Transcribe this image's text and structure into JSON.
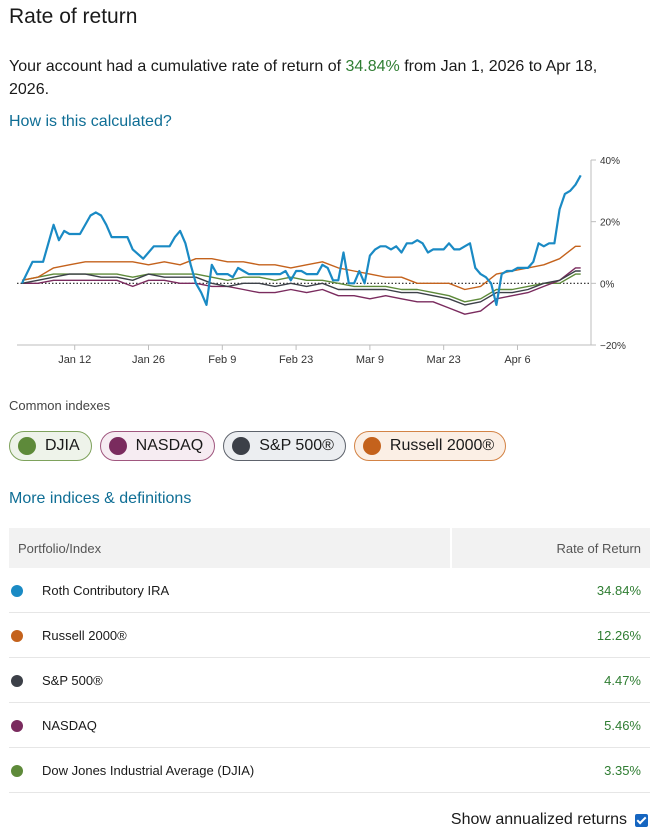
{
  "title": "Rate of return",
  "summary": {
    "prefix": "Your account had a cumulative rate of return of ",
    "rate": "34.84%",
    "suffix": " from Jan 1, 2026 to Apr 18, 2026."
  },
  "how_link": "How is this calculated?",
  "chart_data": {
    "type": "line",
    "x_tick_labels": [
      "Jan 12",
      "Jan 26",
      "Feb 9",
      "Feb 23",
      "Mar 9",
      "Mar 23",
      "Apr 6"
    ],
    "x_tick_positions": [
      11,
      25,
      39,
      53,
      67,
      81,
      95
    ],
    "y_tick_labels": [
      "40%",
      "20%",
      "0%",
      "−20%"
    ],
    "ylim": [
      -20,
      40
    ],
    "xlim": [
      1,
      108
    ],
    "zero_line": "dotted",
    "series": [
      {
        "name": "Roth Contributory IRA",
        "color": "#1a8ac4",
        "x": [
          1,
          3,
          5,
          7,
          8,
          9,
          10,
          11,
          12,
          14,
          15,
          16,
          17,
          18,
          19,
          20,
          21,
          22,
          24,
          26,
          28,
          29,
          30,
          31,
          32,
          33,
          34,
          35,
          36,
          37,
          38,
          39,
          40,
          41,
          42,
          43,
          44,
          45,
          46,
          47,
          48,
          49,
          50,
          51,
          52,
          53,
          54,
          55,
          56,
          57,
          58,
          59,
          60,
          61,
          62,
          63,
          64,
          65,
          66,
          67,
          68,
          69,
          70,
          71,
          72,
          73,
          74,
          75,
          76,
          77,
          78,
          79,
          80,
          81,
          82,
          83,
          84,
          85,
          86,
          87,
          88,
          89,
          90,
          91,
          92,
          93,
          94,
          95,
          96,
          97,
          98,
          99,
          100,
          101,
          102,
          103,
          104,
          105,
          106,
          107
        ],
        "y": [
          0,
          7,
          7,
          19,
          14,
          17,
          16,
          16,
          16,
          22,
          23,
          22,
          19,
          15,
          15,
          15,
          15,
          11,
          8,
          12,
          12,
          12,
          15,
          17,
          13,
          6,
          0,
          -3,
          -7,
          6,
          3,
          3,
          3,
          2,
          5,
          4,
          3,
          3,
          3,
          3,
          3,
          3,
          3,
          4,
          1,
          4,
          4,
          3,
          3,
          3,
          6,
          5,
          1,
          1,
          10,
          0,
          0,
          4,
          0,
          9,
          11,
          12,
          12,
          11,
          12,
          10,
          13,
          13,
          14,
          13,
          10,
          11,
          11,
          11,
          13,
          11,
          11,
          12,
          13,
          5,
          3,
          2,
          0,
          -7,
          3,
          4,
          4,
          5,
          5,
          5,
          7,
          13,
          12,
          13,
          13,
          24,
          29,
          30,
          32,
          35
        ]
      },
      {
        "name": "Russell 2000®",
        "color": "#c4621c",
        "x": [
          1,
          4,
          7,
          10,
          13,
          16,
          19,
          22,
          25,
          28,
          31,
          34,
          37,
          40,
          43,
          46,
          49,
          52,
          55,
          58,
          61,
          64,
          67,
          70,
          73,
          76,
          79,
          82,
          85,
          88,
          91,
          94,
          97,
          100,
          103,
          106,
          107
        ],
        "y": [
          1,
          2,
          5,
          6,
          7,
          7,
          7,
          7,
          6,
          7,
          6,
          8,
          8,
          7,
          7,
          6,
          6,
          5,
          6,
          7,
          5,
          4,
          3,
          2,
          2,
          0,
          0,
          0,
          -2,
          -1,
          3,
          4,
          5,
          6,
          8,
          12,
          12
        ]
      },
      {
        "name": "S&P 500®",
        "color": "#3c4048",
        "x": [
          1,
          4,
          7,
          10,
          13,
          16,
          19,
          22,
          25,
          28,
          31,
          34,
          37,
          40,
          43,
          46,
          49,
          52,
          55,
          58,
          61,
          64,
          67,
          70,
          73,
          76,
          79,
          82,
          85,
          88,
          91,
          94,
          97,
          100,
          103,
          106,
          107
        ],
        "y": [
          0,
          1,
          2,
          3,
          3,
          2,
          2,
          1,
          3,
          2,
          2,
          2,
          0,
          -1,
          0,
          0,
          -1,
          0,
          -1,
          0,
          -2,
          -2,
          -2,
          -2,
          -3,
          -3,
          -4,
          -5,
          -7,
          -6,
          -3,
          -3,
          -2,
          0,
          1,
          4,
          4
        ]
      },
      {
        "name": "NASDAQ",
        "color": "#7a2b5e",
        "x": [
          1,
          4,
          7,
          10,
          13,
          16,
          19,
          22,
          25,
          28,
          31,
          34,
          37,
          40,
          43,
          46,
          49,
          52,
          55,
          58,
          61,
          64,
          67,
          70,
          73,
          76,
          79,
          82,
          85,
          88,
          91,
          94,
          97,
          100,
          103,
          106,
          107
        ],
        "y": [
          0,
          0,
          1,
          1,
          1,
          1,
          1,
          -1,
          1,
          1,
          0,
          0,
          -1,
          -1,
          -2,
          -3,
          -3,
          -2,
          -3,
          -2,
          -4,
          -4,
          -5,
          -4,
          -5,
          -6,
          -6,
          -8,
          -10,
          -9,
          -5,
          -4,
          -3,
          -1,
          1,
          5,
          5
        ]
      },
      {
        "name": "Dow Jones Industrial Average (DJIA)",
        "color": "#5e8a3a",
        "x": [
          1,
          4,
          7,
          10,
          13,
          16,
          19,
          22,
          25,
          28,
          31,
          34,
          37,
          40,
          43,
          46,
          49,
          52,
          55,
          58,
          61,
          64,
          67,
          70,
          73,
          76,
          79,
          82,
          85,
          88,
          91,
          94,
          97,
          100,
          103,
          106,
          107
        ],
        "y": [
          1,
          2,
          3,
          3,
          3,
          3,
          3,
          2,
          3,
          3,
          3,
          3,
          2,
          1,
          2,
          2,
          1,
          2,
          1,
          1,
          0,
          -1,
          -1,
          -1,
          -2,
          -2,
          -3,
          -4,
          -6,
          -5,
          -2,
          -2,
          -1,
          0,
          0,
          3,
          3
        ]
      }
    ]
  },
  "common_label": "Common indexes",
  "pills": [
    {
      "label": "DJIA",
      "dot": "#5e8a3a",
      "bg": "#eef3ea",
      "border": "#7ea25c"
    },
    {
      "label": "NASDAQ",
      "dot": "#7a2b5e",
      "bg": "#f6ecf2",
      "border": "#a0577f"
    },
    {
      "label": "S&P 500®",
      "dot": "#3c4048",
      "bg": "#eceef1",
      "border": "#5e636c"
    },
    {
      "label": "Russell 2000®",
      "dot": "#c4621c",
      "bg": "#fbefe5",
      "border": "#d38345"
    }
  ],
  "more_link": "More indices & definitions",
  "table": {
    "col_portfolio": "Portfolio/Index",
    "col_rate": "Rate of Return",
    "rows": [
      {
        "name": "Roth Contributory IRA",
        "rate": "34.84%",
        "color": "#1a8ac4"
      },
      {
        "name": "Russell 2000®",
        "rate": "12.26%",
        "color": "#c4621c"
      },
      {
        "name": "S&P 500®",
        "rate": "4.47%",
        "color": "#3c4048"
      },
      {
        "name": "NASDAQ",
        "rate": "5.46%",
        "color": "#7a2b5e"
      },
      {
        "name": "Dow Jones Industrial Average (DJIA)",
        "rate": "3.35%",
        "color": "#5e8a3a"
      }
    ]
  },
  "annualized_label": "Show annualized returns"
}
